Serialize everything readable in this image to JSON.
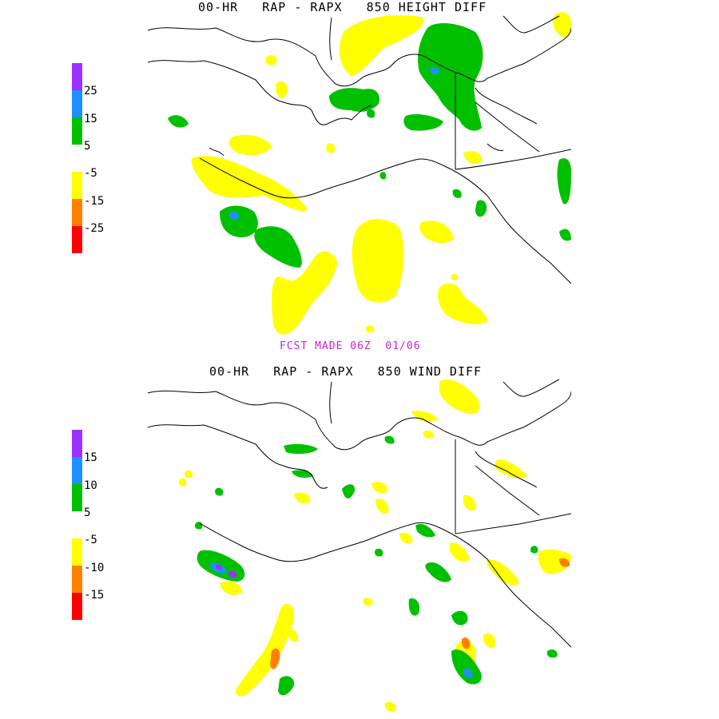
{
  "panels": [
    {
      "title": "00-HR   RAP - RAPX   850 HEIGHT DIFF",
      "colorbar": {
        "colors": [
          "#9b30ff",
          "#1e90ff",
          "#00c000",
          "#ffffff",
          "#ffff00",
          "#ff8000",
          "#ff0000"
        ],
        "labels": [
          "25",
          "15",
          "5",
          "-5",
          "-15",
          "-25"
        ]
      }
    },
    {
      "title": "00-HR   RAP - RAPX   850 WIND DIFF",
      "colorbar": {
        "colors": [
          "#9b30ff",
          "#1e90ff",
          "#00c000",
          "#ffffff",
          "#ffff00",
          "#ff8000",
          "#ff0000"
        ],
        "labels": [
          "15",
          "10",
          "5",
          "-5",
          "-10",
          "-15"
        ]
      }
    }
  ],
  "footer": "FCST MADE 06Z  01/06",
  "colors": {
    "green": "#00c000",
    "yellow": "#ffff00",
    "blue": "#1e90ff",
    "purple": "#9b30ff",
    "orange": "#ff8000",
    "red": "#ff0000",
    "magenta": "#d020d0"
  }
}
